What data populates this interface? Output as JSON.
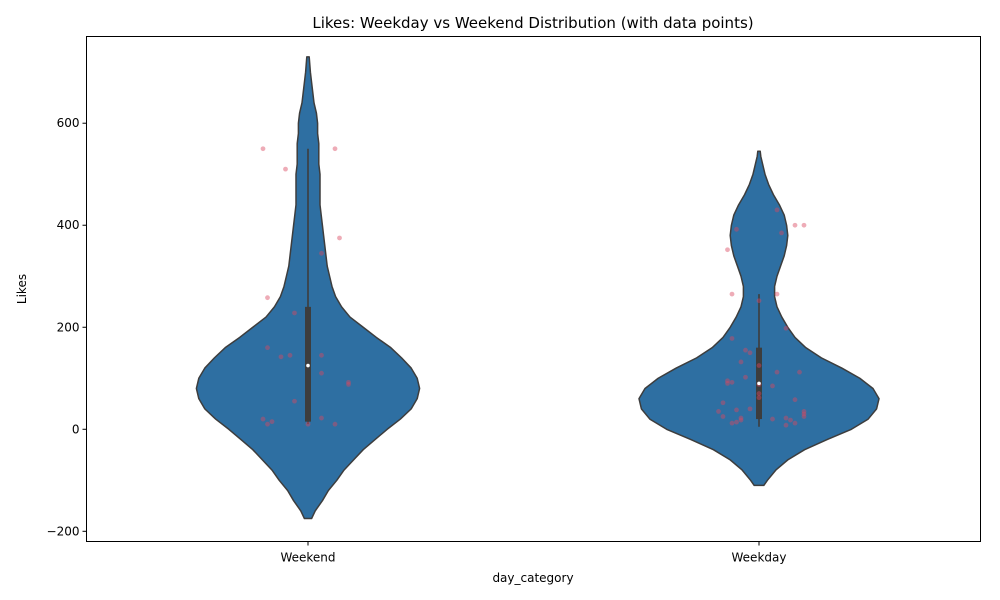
{
  "chart_data": {
    "type": "violin",
    "title": "Likes: Weekday vs Weekend Distribution (with data points)",
    "xlabel": "day_category",
    "ylabel": "Likes",
    "ylim": [
      -220,
      770
    ],
    "yticks": [
      -200,
      0,
      200,
      400,
      600
    ],
    "categories": [
      "Weekend",
      "Weekday"
    ],
    "grid": false,
    "legend": "none",
    "colors": {
      "violin": "#2e6fa2",
      "violin_edge": "#3d3d3d",
      "box": "#3d3d3d",
      "median": "#ffffff",
      "points": "#d9485f"
    },
    "violins": [
      {
        "category": "Weekend",
        "y_range": [
          -175,
          730
        ],
        "density": [
          [
            -175,
            0.03
          ],
          [
            -160,
            0.06
          ],
          [
            -140,
            0.12
          ],
          [
            -120,
            0.17
          ],
          [
            -100,
            0.24
          ],
          [
            -80,
            0.3
          ],
          [
            -60,
            0.38
          ],
          [
            -40,
            0.46
          ],
          [
            -20,
            0.56
          ],
          [
            0,
            0.66
          ],
          [
            20,
            0.77
          ],
          [
            40,
            0.86
          ],
          [
            60,
            0.91
          ],
          [
            80,
            0.93
          ],
          [
            100,
            0.91
          ],
          [
            120,
            0.86
          ],
          [
            140,
            0.78
          ],
          [
            160,
            0.69
          ],
          [
            180,
            0.57
          ],
          [
            200,
            0.46
          ],
          [
            220,
            0.35
          ],
          [
            240,
            0.28
          ],
          [
            260,
            0.23
          ],
          [
            280,
            0.2
          ],
          [
            300,
            0.18
          ],
          [
            320,
            0.16
          ],
          [
            340,
            0.15
          ],
          [
            360,
            0.14
          ],
          [
            380,
            0.13
          ],
          [
            400,
            0.12
          ],
          [
            420,
            0.11
          ],
          [
            440,
            0.1
          ],
          [
            460,
            0.1
          ],
          [
            480,
            0.1
          ],
          [
            500,
            0.1
          ],
          [
            520,
            0.09
          ],
          [
            540,
            0.09
          ],
          [
            560,
            0.09
          ],
          [
            580,
            0.08
          ],
          [
            600,
            0.08
          ],
          [
            620,
            0.07
          ],
          [
            640,
            0.05
          ],
          [
            660,
            0.04
          ],
          [
            680,
            0.03
          ],
          [
            700,
            0.02
          ],
          [
            715,
            0.015
          ],
          [
            730,
            0.01
          ]
        ],
        "box": {
          "q1": 15,
          "median": 125,
          "q3": 240,
          "whisker_low": 10,
          "whisker_high": 550
        },
        "points": [
          [
            -0.1,
            550
          ],
          [
            0.06,
            550
          ],
          [
            -0.05,
            510
          ],
          [
            0.07,
            375
          ],
          [
            0.03,
            345
          ],
          [
            -0.09,
            258
          ],
          [
            -0.03,
            228
          ],
          [
            -0.09,
            160
          ],
          [
            -0.04,
            145
          ],
          [
            -0.06,
            142
          ],
          [
            0.03,
            145
          ],
          [
            0.03,
            110
          ],
          [
            0.09,
            92
          ],
          [
            0.09,
            88
          ],
          [
            -0.03,
            55
          ],
          [
            0.03,
            22
          ],
          [
            -0.1,
            20
          ],
          [
            -0.08,
            15
          ],
          [
            -0.09,
            10
          ],
          [
            0.0,
            10
          ],
          [
            0.06,
            10
          ]
        ]
      },
      {
        "category": "Weekday",
        "y_range": [
          -110,
          545
        ],
        "density": [
          [
            -110,
            0.04
          ],
          [
            -100,
            0.07
          ],
          [
            -80,
            0.14
          ],
          [
            -60,
            0.24
          ],
          [
            -40,
            0.38
          ],
          [
            -20,
            0.57
          ],
          [
            0,
            0.77
          ],
          [
            20,
            0.91
          ],
          [
            40,
            0.98
          ],
          [
            60,
            1.0
          ],
          [
            80,
            0.95
          ],
          [
            100,
            0.84
          ],
          [
            120,
            0.69
          ],
          [
            140,
            0.52
          ],
          [
            160,
            0.39
          ],
          [
            180,
            0.3
          ],
          [
            200,
            0.24
          ],
          [
            220,
            0.19
          ],
          [
            240,
            0.15
          ],
          [
            260,
            0.13
          ],
          [
            280,
            0.13
          ],
          [
            300,
            0.15
          ],
          [
            320,
            0.18
          ],
          [
            340,
            0.21
          ],
          [
            360,
            0.23
          ],
          [
            380,
            0.24
          ],
          [
            400,
            0.23
          ],
          [
            420,
            0.21
          ],
          [
            440,
            0.17
          ],
          [
            460,
            0.12
          ],
          [
            480,
            0.08
          ],
          [
            500,
            0.05
          ],
          [
            520,
            0.03
          ],
          [
            535,
            0.015
          ],
          [
            545,
            0.01
          ]
        ],
        "box": {
          "q1": 20,
          "median": 90,
          "q3": 160,
          "whisker_low": 5,
          "whisker_high": 265
        },
        "points": [
          [
            0.04,
            430
          ],
          [
            0.08,
            400
          ],
          [
            0.1,
            400
          ],
          [
            0.05,
            385
          ],
          [
            -0.05,
            392
          ],
          [
            -0.07,
            352
          ],
          [
            0.04,
            265
          ],
          [
            -0.06,
            265
          ],
          [
            0.0,
            252
          ],
          [
            0.06,
            198
          ],
          [
            -0.06,
            178
          ],
          [
            -0.03,
            155
          ],
          [
            -0.02,
            150
          ],
          [
            -0.04,
            132
          ],
          [
            0.0,
            125
          ],
          [
            0.04,
            112
          ],
          [
            0.09,
            112
          ],
          [
            -0.03,
            102
          ],
          [
            -0.07,
            95
          ],
          [
            -0.06,
            92
          ],
          [
            -0.07,
            90
          ],
          [
            0.0,
            88
          ],
          [
            0.03,
            85
          ],
          [
            0.0,
            70
          ],
          [
            0.0,
            62
          ],
          [
            -0.08,
            52
          ],
          [
            0.08,
            58
          ],
          [
            -0.02,
            40
          ],
          [
            -0.05,
            38
          ],
          [
            -0.09,
            35
          ],
          [
            0.1,
            35
          ],
          [
            0.1,
            30
          ],
          [
            -0.08,
            25
          ],
          [
            0.1,
            25
          ],
          [
            0.06,
            22
          ],
          [
            -0.04,
            22
          ],
          [
            -0.04,
            18
          ],
          [
            0.03,
            20
          ],
          [
            0.07,
            18
          ],
          [
            -0.05,
            14
          ],
          [
            -0.06,
            12
          ],
          [
            0.08,
            12
          ],
          [
            0.06,
            8
          ]
        ]
      }
    ]
  }
}
